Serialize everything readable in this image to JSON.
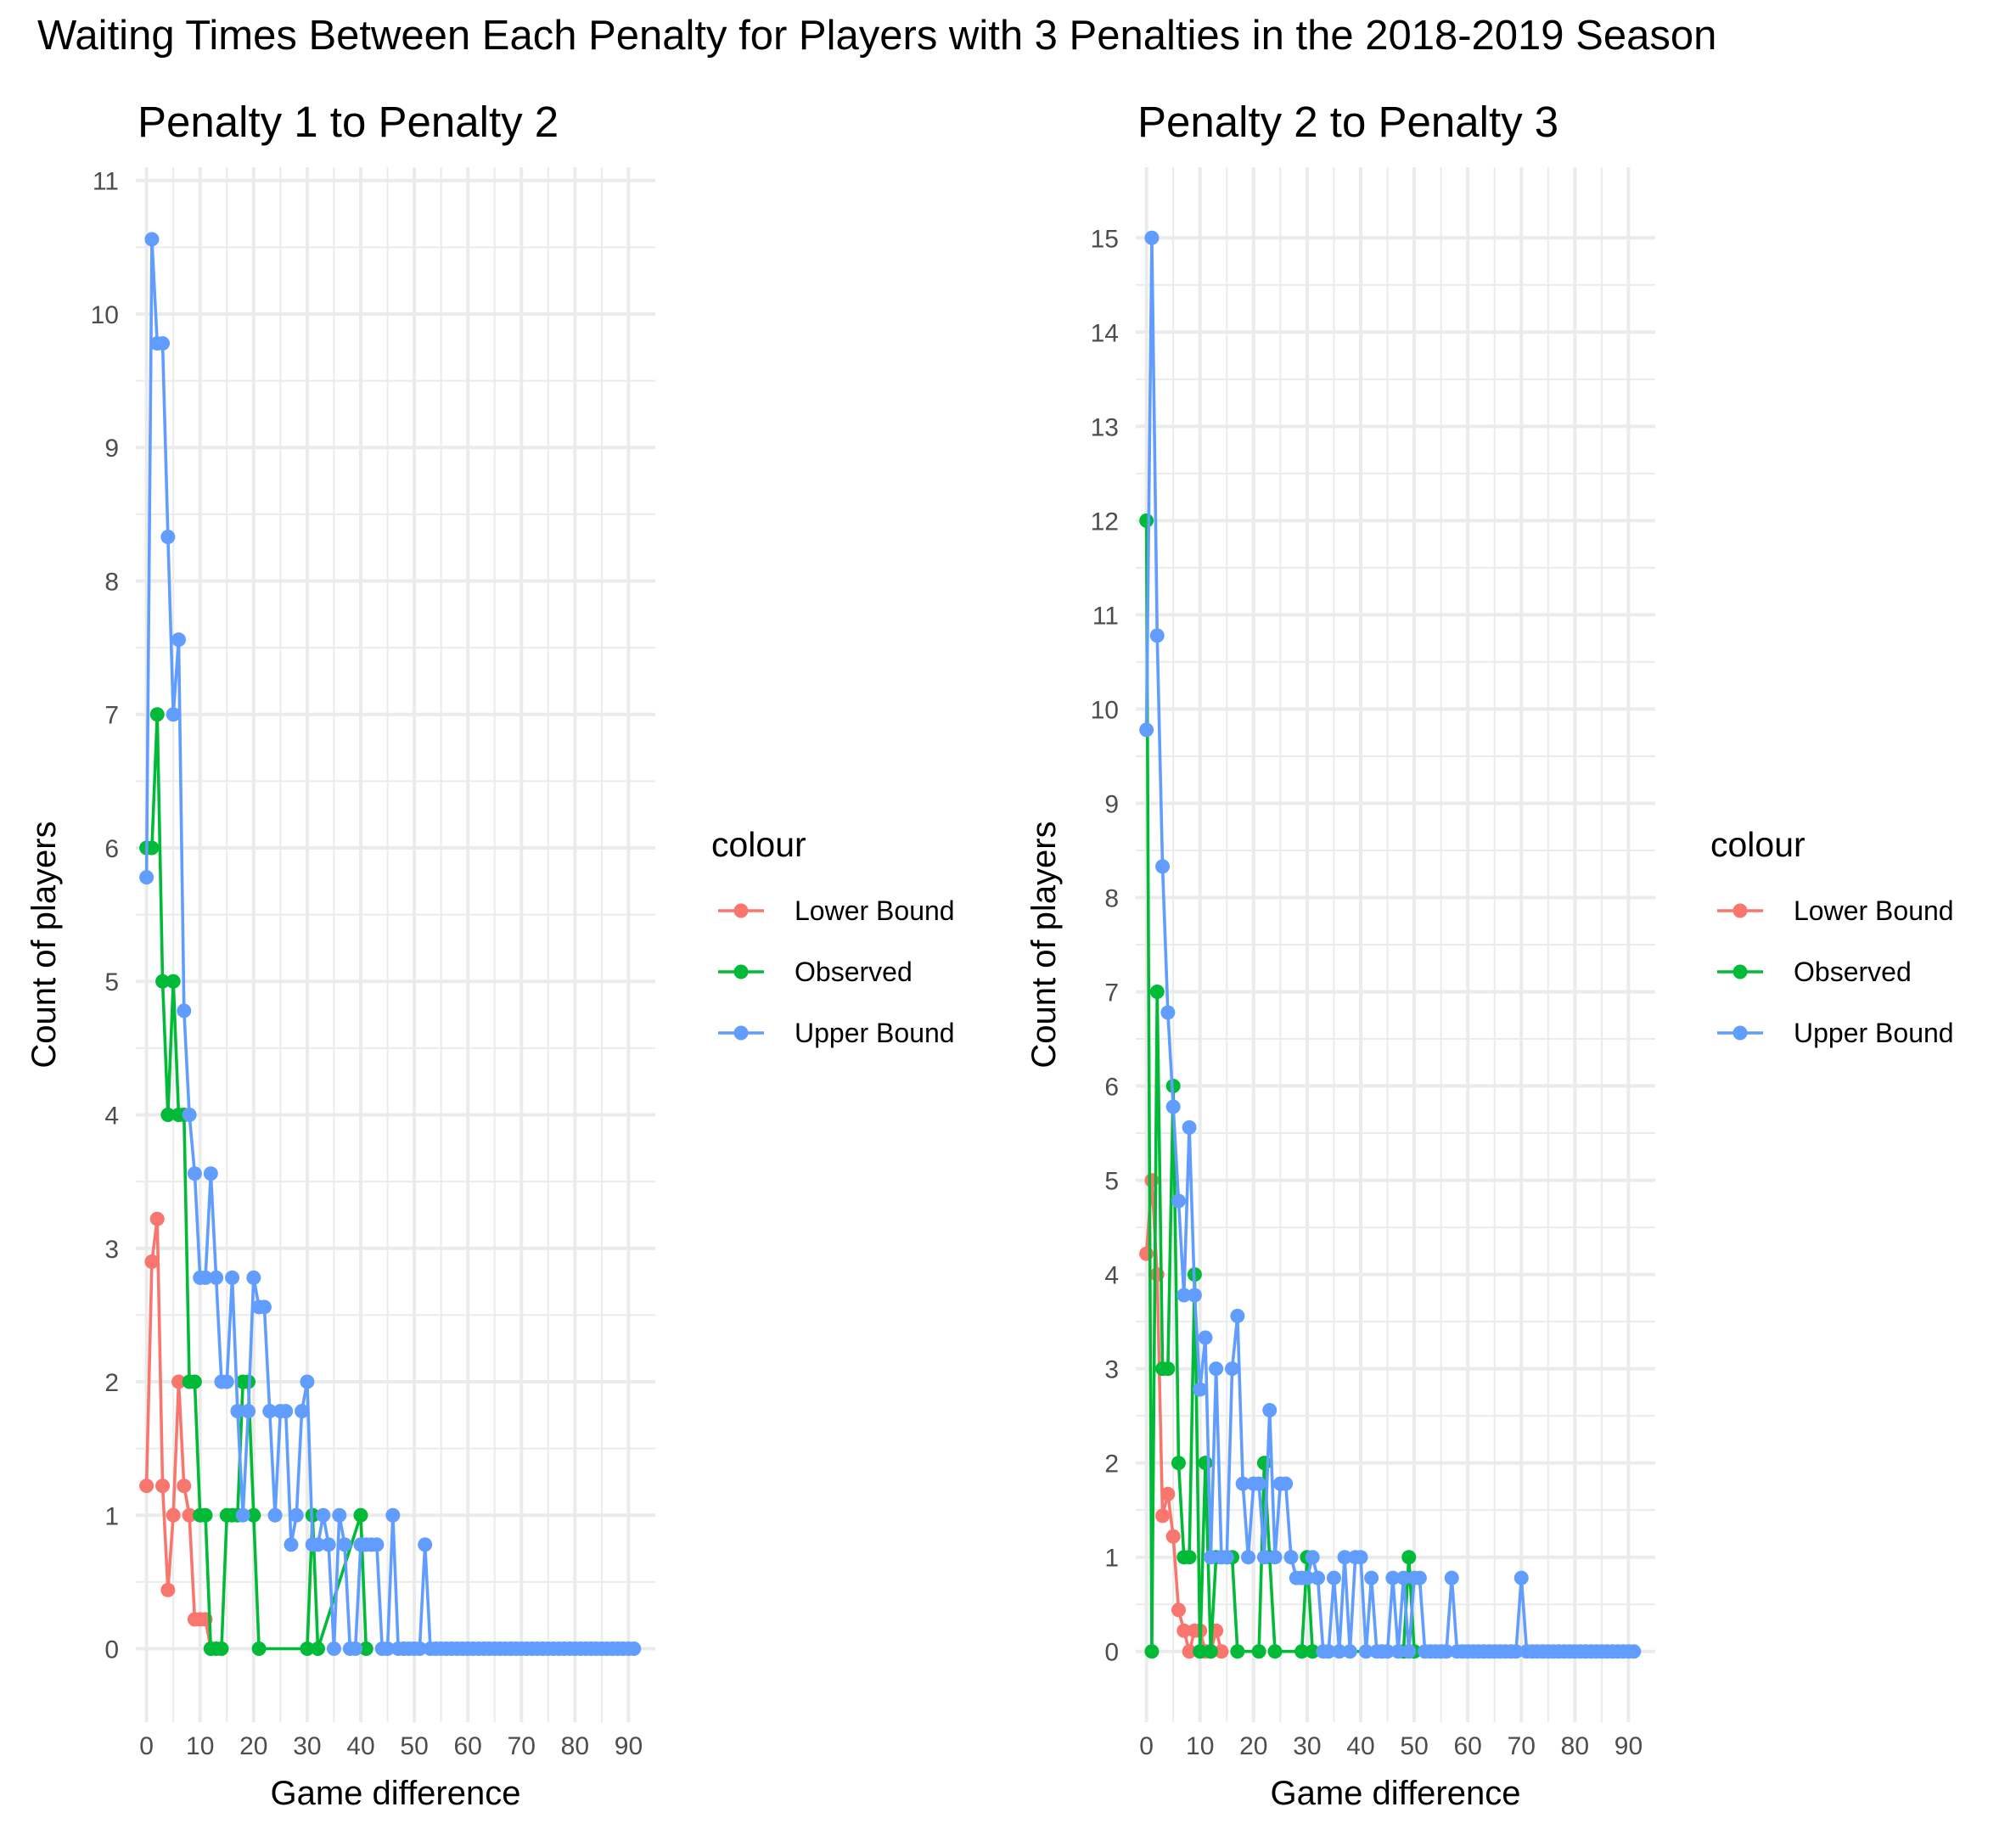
{
  "title": "Waiting Times Between Each Penalty for Players with 3 Penalties in the 2018-2019 Season",
  "colors": {
    "Lower Bound": "#F8766D",
    "Observed": "#00BA38",
    "Upper Bound": "#619CFF"
  },
  "chart_data": [
    {
      "type": "line",
      "title": "Penalty 1 to Penalty 2",
      "xlabel": "Game difference",
      "ylabel": "Count of players",
      "xlim": [
        -2,
        95
      ],
      "ylim": [
        -0.55,
        11.1
      ],
      "xticks": [
        0,
        10,
        20,
        30,
        40,
        50,
        60,
        70,
        80,
        90
      ],
      "yticks": [
        0,
        1,
        2,
        3,
        4,
        5,
        6,
        7,
        8,
        9,
        10,
        11
      ],
      "legend": {
        "title": "colour",
        "position": "right",
        "labels": [
          "Lower Bound",
          "Observed",
          "Upper Bound"
        ]
      },
      "grid": true,
      "series": [
        {
          "name": "Lower Bound",
          "x": [
            0,
            1,
            2,
            3,
            4,
            5,
            6,
            7,
            8,
            9,
            10,
            11,
            12
          ],
          "y": [
            1.22,
            2.9,
            3.22,
            1.22,
            0.44,
            1.0,
            2.0,
            1.22,
            1.0,
            0.22,
            0.22,
            0.22,
            0
          ]
        },
        {
          "name": "Observed",
          "x": [
            0,
            1,
            2,
            3,
            4,
            5,
            6,
            7,
            8,
            9,
            10,
            11,
            12,
            13,
            14,
            15,
            16,
            17,
            18,
            19,
            20,
            21,
            30,
            31,
            32,
            40,
            41
          ],
          "y": [
            6,
            6,
            7,
            5,
            4,
            5,
            4,
            4,
            2,
            2,
            1,
            1,
            0,
            0,
            0,
            1,
            1,
            1,
            2,
            2,
            1,
            0,
            0,
            1,
            0,
            1,
            0
          ]
        },
        {
          "name": "Upper Bound",
          "x": [
            0,
            1,
            2,
            3,
            4,
            5,
            6,
            7,
            8,
            9,
            10,
            11,
            12,
            13,
            14,
            15,
            16,
            17,
            18,
            19,
            20,
            21,
            22,
            23,
            24,
            25,
            26,
            27,
            28,
            29,
            30,
            31,
            32,
            33,
            34,
            35,
            36,
            37,
            38,
            39,
            40,
            41,
            42,
            43,
            44,
            45,
            46,
            47,
            48,
            49,
            50,
            51,
            52,
            53,
            54,
            55,
            56,
            57,
            58,
            59,
            60,
            61,
            62,
            63,
            64,
            65,
            66,
            67,
            68,
            69,
            70,
            71,
            72,
            73,
            74,
            75,
            76,
            77,
            78,
            79,
            80,
            81,
            82,
            83,
            84,
            85,
            86,
            87,
            88,
            89,
            90,
            91
          ],
          "y": [
            5.78,
            10.56,
            9.78,
            9.78,
            8.33,
            7.0,
            7.56,
            4.78,
            4.0,
            3.56,
            2.78,
            2.78,
            3.56,
            2.78,
            2.0,
            2.0,
            2.78,
            1.78,
            1.0,
            1.78,
            2.78,
            2.56,
            2.56,
            1.78,
            1.0,
            1.78,
            1.78,
            0.78,
            1.0,
            1.78,
            2.0,
            0.78,
            0.78,
            1.0,
            0.78,
            0,
            1.0,
            0.78,
            0,
            0,
            0.78,
            0.78,
            0.78,
            0.78,
            0,
            0,
            1.0,
            0,
            0,
            0,
            0,
            0,
            0.78,
            0,
            0,
            0,
            0,
            0,
            0,
            0,
            0,
            0,
            0,
            0,
            0,
            0,
            0,
            0,
            0,
            0,
            0,
            0,
            0,
            0,
            0,
            0,
            0,
            0,
            0,
            0,
            0,
            0,
            0,
            0,
            0,
            0,
            0,
            0,
            0,
            0,
            0,
            0
          ]
        }
      ]
    },
    {
      "type": "line",
      "title": "Penalty 2 to Penalty 3",
      "xlabel": "Game difference",
      "ylabel": "Count of players",
      "xlim": [
        -2,
        95
      ],
      "ylim": [
        -0.75,
        15.75
      ],
      "xticks": [
        0,
        10,
        20,
        30,
        40,
        50,
        60,
        70,
        80,
        90
      ],
      "yticks": [
        0,
        1,
        2,
        3,
        4,
        5,
        6,
        7,
        8,
        9,
        10,
        11,
        12,
        13,
        14,
        15
      ],
      "legend": {
        "title": "colour",
        "position": "right",
        "labels": [
          "Lower Bound",
          "Observed",
          "Upper Bound"
        ]
      },
      "grid": true,
      "series": [
        {
          "name": "Lower Bound",
          "x": [
            0,
            1,
            2,
            3,
            4,
            5,
            6,
            7,
            8,
            9,
            10,
            11,
            12,
            13,
            14
          ],
          "y": [
            4.22,
            5.0,
            4.0,
            1.44,
            1.67,
            1.22,
            0.44,
            0.22,
            0,
            0.22,
            0.22,
            0,
            0,
            0.22,
            0
          ]
        },
        {
          "name": "Observed",
          "x": [
            0,
            1,
            2,
            3,
            4,
            5,
            6,
            7,
            8,
            9,
            10,
            11,
            12,
            13,
            14,
            15,
            16,
            17,
            21,
            22,
            23,
            24,
            29,
            30,
            31,
            48,
            49,
            50
          ],
          "y": [
            12,
            0,
            7,
            3,
            3,
            6,
            2,
            1,
            1,
            4,
            0,
            2,
            0,
            1,
            1,
            1,
            1,
            0,
            0,
            2,
            1,
            0,
            0,
            1,
            0,
            0,
            1,
            0
          ]
        },
        {
          "name": "Upper Bound",
          "x": [
            0,
            1,
            2,
            3,
            4,
            5,
            6,
            7,
            8,
            9,
            10,
            11,
            12,
            13,
            14,
            15,
            16,
            17,
            18,
            19,
            20,
            21,
            22,
            23,
            24,
            25,
            26,
            27,
            28,
            29,
            30,
            31,
            32,
            33,
            34,
            35,
            36,
            37,
            38,
            39,
            40,
            41,
            42,
            43,
            44,
            45,
            46,
            47,
            48,
            49,
            50,
            51,
            52,
            53,
            54,
            55,
            56,
            57,
            58,
            59,
            60,
            61,
            62,
            63,
            64,
            65,
            66,
            67,
            68,
            69,
            70,
            71,
            72,
            73,
            74,
            75,
            76,
            77,
            78,
            79,
            80,
            81,
            82,
            83,
            84,
            85,
            86,
            87,
            88,
            89,
            90,
            91
          ],
          "y": [
            9.78,
            15.0,
            10.78,
            8.33,
            6.78,
            5.78,
            4.78,
            3.78,
            5.56,
            3.78,
            2.78,
            3.33,
            1.0,
            3.0,
            1.0,
            1.0,
            3.0,
            3.56,
            1.78,
            1.0,
            1.78,
            1.78,
            1.0,
            2.56,
            1.0,
            1.78,
            1.78,
            1.0,
            0.78,
            0.78,
            0.78,
            1.0,
            0.78,
            0,
            0,
            0.78,
            0,
            1.0,
            0,
            1.0,
            1.0,
            0,
            0.78,
            0,
            0,
            0,
            0.78,
            0,
            0.78,
            0,
            0.78,
            0.78,
            0,
            0,
            0,
            0,
            0,
            0.78,
            0,
            0,
            0,
            0,
            0,
            0,
            0,
            0,
            0,
            0,
            0,
            0,
            0.78,
            0,
            0,
            0,
            0,
            0,
            0,
            0,
            0,
            0,
            0,
            0,
            0,
            0,
            0,
            0,
            0,
            0,
            0,
            0,
            0,
            0
          ]
        }
      ]
    }
  ]
}
